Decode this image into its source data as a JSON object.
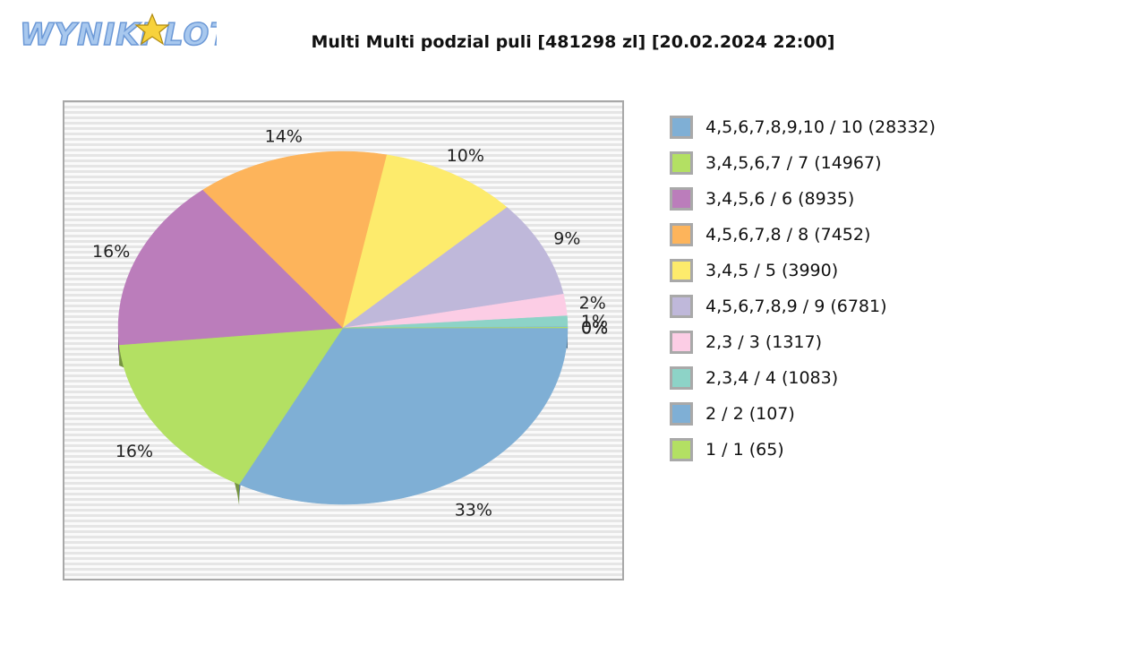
{
  "header": {
    "logo_text": "WYNIKI LOTTO"
  },
  "chart_data": {
    "type": "pie",
    "title": "Multi Multi podzial puli [481298 zl] [20.02.2024 22:00]",
    "legend_position": "right",
    "slices": [
      {
        "label": "4,5,6,7,8,9,10 / 10 (28332)",
        "value": 28332,
        "percent_label": "33%",
        "color": "#7fafd5"
      },
      {
        "label": "3,4,5,6,7 / 7 (14967)",
        "value": 14967,
        "percent_label": "16%",
        "color": "#b3e063"
      },
      {
        "label": "3,4,5,6 / 6 (8935)",
        "value": 8935,
        "percent_label": "16%",
        "color": "#bb7dbb"
      },
      {
        "label": "4,5,6,7,8 / 8 (7452)",
        "value": 7452,
        "percent_label": "14%",
        "color": "#fdb45b"
      },
      {
        "label": "3,4,5 / 5 (3990)",
        "value": 3990,
        "percent_label": "10%",
        "color": "#fdeb6c"
      },
      {
        "label": "4,5,6,7,8,9 / 9 (6781)",
        "value": 6781,
        "percent_label": "9%",
        "color": "#bfb8da"
      },
      {
        "label": "2,3 / 3 (1317)",
        "value": 1317,
        "percent_label": "2%",
        "color": "#fccde5"
      },
      {
        "label": "2,3,4 / 4 (1083)",
        "value": 1083,
        "percent_label": "1%",
        "color": "#8dd3c7"
      },
      {
        "label": "2 / 2 (107)",
        "value": 107,
        "percent_label": "0%",
        "color": "#7fafd5"
      },
      {
        "label": "1 / 1 (65)",
        "value": 65,
        "percent_label": "0%",
        "color": "#b3e063"
      }
    ],
    "visual_percent": [
      33,
      16,
      16,
      14,
      10,
      9,
      2,
      1,
      0.05,
      0.05
    ]
  }
}
